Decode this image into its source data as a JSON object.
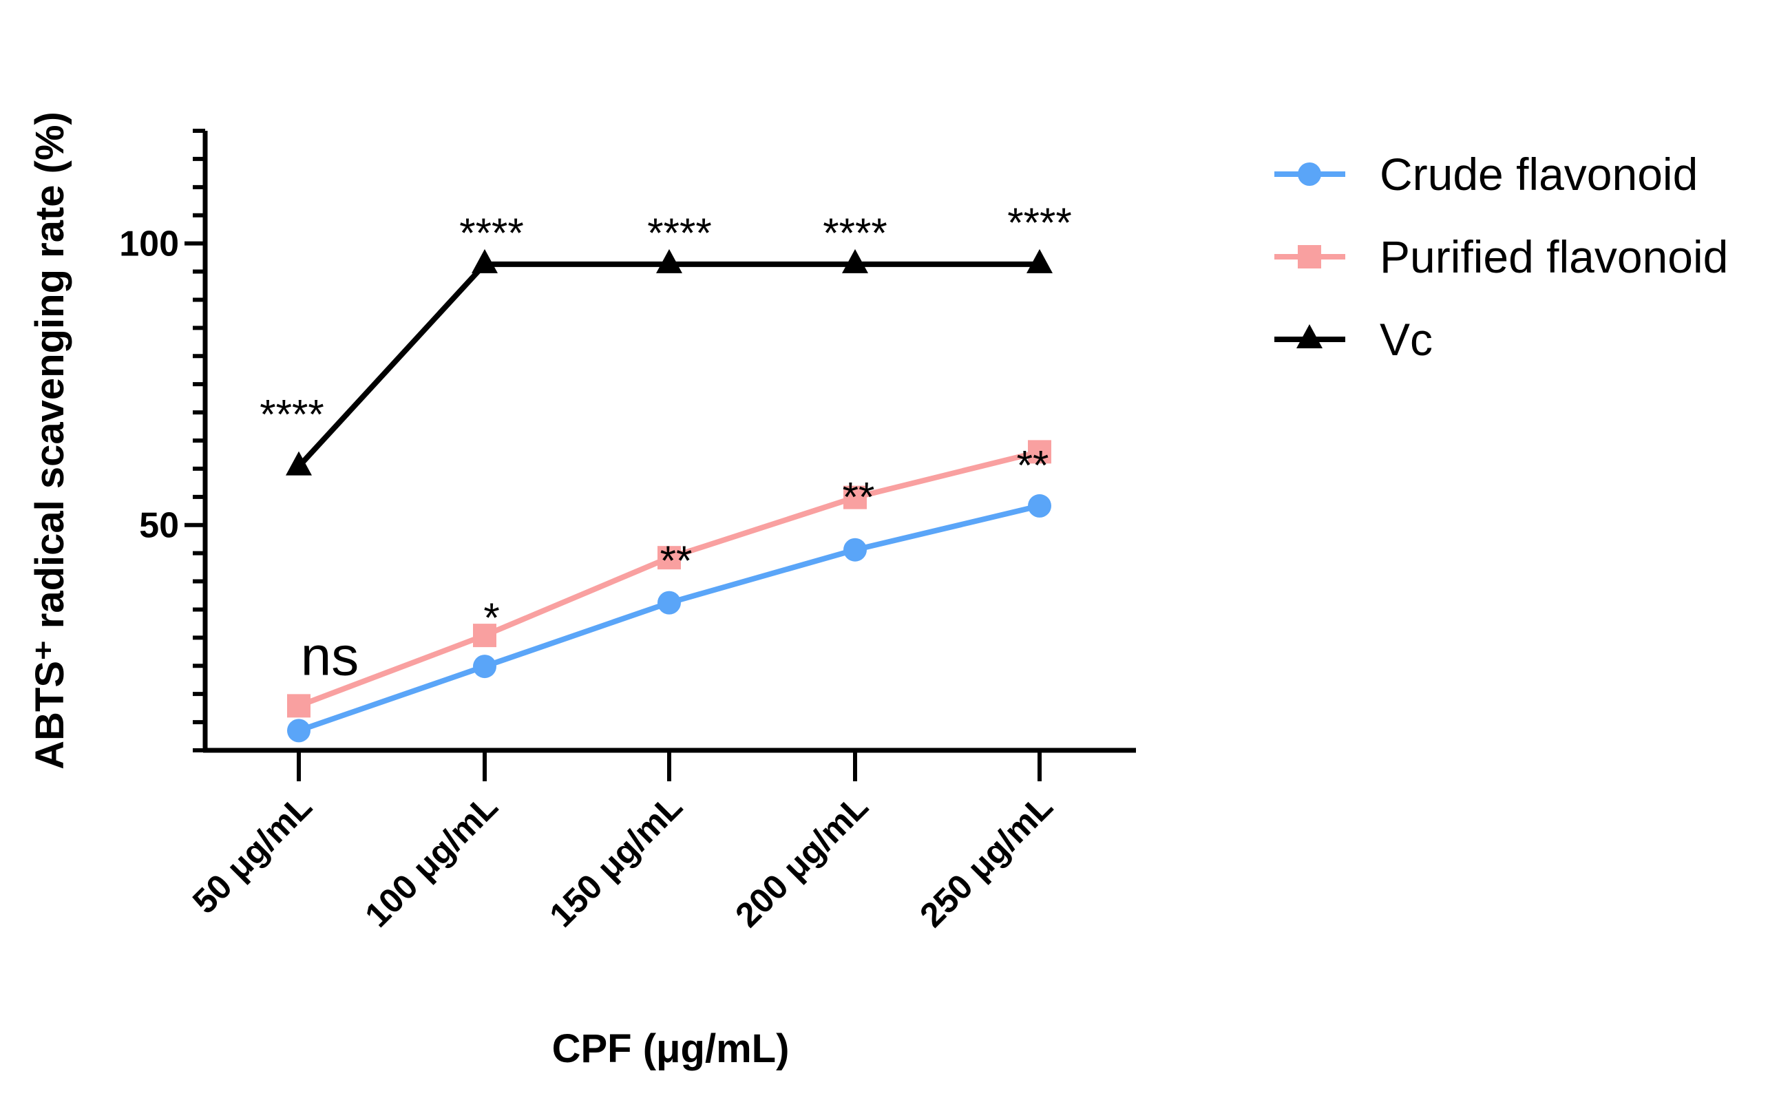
{
  "chart_data": {
    "type": "line",
    "xlabel": "CPF (μg/mL)",
    "ylabel": "ABTS⁺ radical scavenging rate (%)",
    "categories": [
      "50 μg/mL",
      "100 μg/mL",
      "150 μg/mL",
      "200 μg/mL",
      "250 μg/mL"
    ],
    "ylim": [
      10,
      120
    ],
    "yticks": [
      50,
      100
    ],
    "ytick_labels": [
      "50",
      "100"
    ],
    "minor_tick_step": 5,
    "grid": false,
    "legend_position": "right",
    "series": [
      {
        "name": "Crude flavonoid",
        "color": "#5aa5f8",
        "marker": "circle",
        "values": [
          13.5,
          24.9,
          36.2,
          45.6,
          53.4
        ]
      },
      {
        "name": "Purified flavonoid",
        "color": "#f9a0a0",
        "marker": "square",
        "values": [
          17.9,
          30.4,
          44.2,
          54.9,
          63.0
        ]
      },
      {
        "name": "Vc",
        "color": "#000000",
        "marker": "triangle",
        "values": [
          60.4,
          96.3,
          96.3,
          96.3,
          96.3
        ]
      }
    ],
    "annotations": [
      {
        "text": "****",
        "category": "50 μg/mL",
        "series": "Vc"
      },
      {
        "text": "****",
        "category": "100 μg/mL",
        "series": "Vc"
      },
      {
        "text": "****",
        "category": "150 μg/mL",
        "series": "Vc"
      },
      {
        "text": "****",
        "category": "200 μg/mL",
        "series": "Vc"
      },
      {
        "text": "****",
        "category": "250 μg/mL",
        "series": "Vc"
      },
      {
        "text": "ns",
        "category": "50 μg/mL",
        "series": "Purified flavonoid"
      },
      {
        "text": "*",
        "category": "100 μg/mL",
        "series": "Purified flavonoid"
      },
      {
        "text": "**",
        "category": "150 μg/mL",
        "series": "Purified flavonoid"
      },
      {
        "text": "**",
        "category": "200 μg/mL",
        "series": "Purified flavonoid"
      },
      {
        "text": "**",
        "category": "250 μg/mL",
        "series": "Purified flavonoid"
      }
    ]
  }
}
